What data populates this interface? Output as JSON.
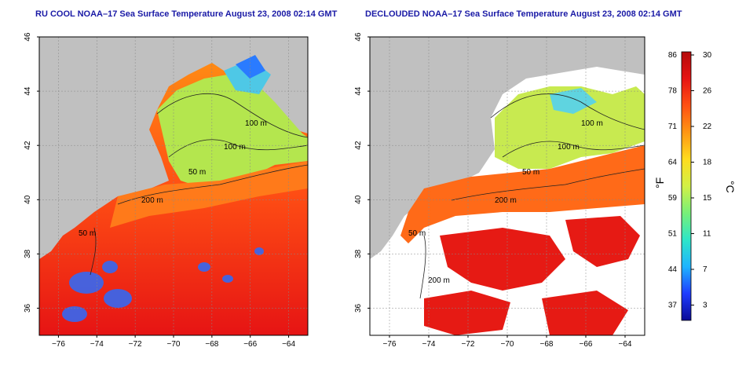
{
  "panels": [
    {
      "title": "RU COOL NOAA–17 Sea Surface Temperature August 23, 2008 02:14 GMT",
      "contour_labels": [
        "100 m",
        "100 m",
        "50 m",
        "200 m",
        "50 m"
      ]
    },
    {
      "title": "DECLOUDED NOAA–17 Sea Surface Temperature August 23, 2008 02:14 GMT",
      "contour_labels": [
        "100 m",
        "100 m",
        "50 m",
        "200 m",
        "50 m",
        "200 m"
      ]
    }
  ],
  "axes": {
    "x_ticks": [
      "−76",
      "−74",
      "−72",
      "−70",
      "−68",
      "−66",
      "−64"
    ],
    "y_ticks": [
      "36",
      "38",
      "40",
      "42",
      "44",
      "46"
    ]
  },
  "colorbar": {
    "fahrenheit_ticks": [
      "86",
      "78",
      "71",
      "64",
      "59",
      "51",
      "44",
      "37"
    ],
    "celsius_ticks": [
      "30",
      "26",
      "22",
      "18",
      "15",
      "11",
      "7",
      "3"
    ],
    "unit_f": "°F",
    "unit_c": "°C",
    "colors": [
      "#0a0a96",
      "#1e3cff",
      "#1eb4ff",
      "#2ee6c8",
      "#78f078",
      "#d2f046",
      "#ffdc1e",
      "#ff9614",
      "#ff5014",
      "#e61414",
      "#b40a0a"
    ]
  },
  "colors": {
    "land": "#c0c0c0",
    "title": "#1a1aa6",
    "grid": "#888888"
  }
}
